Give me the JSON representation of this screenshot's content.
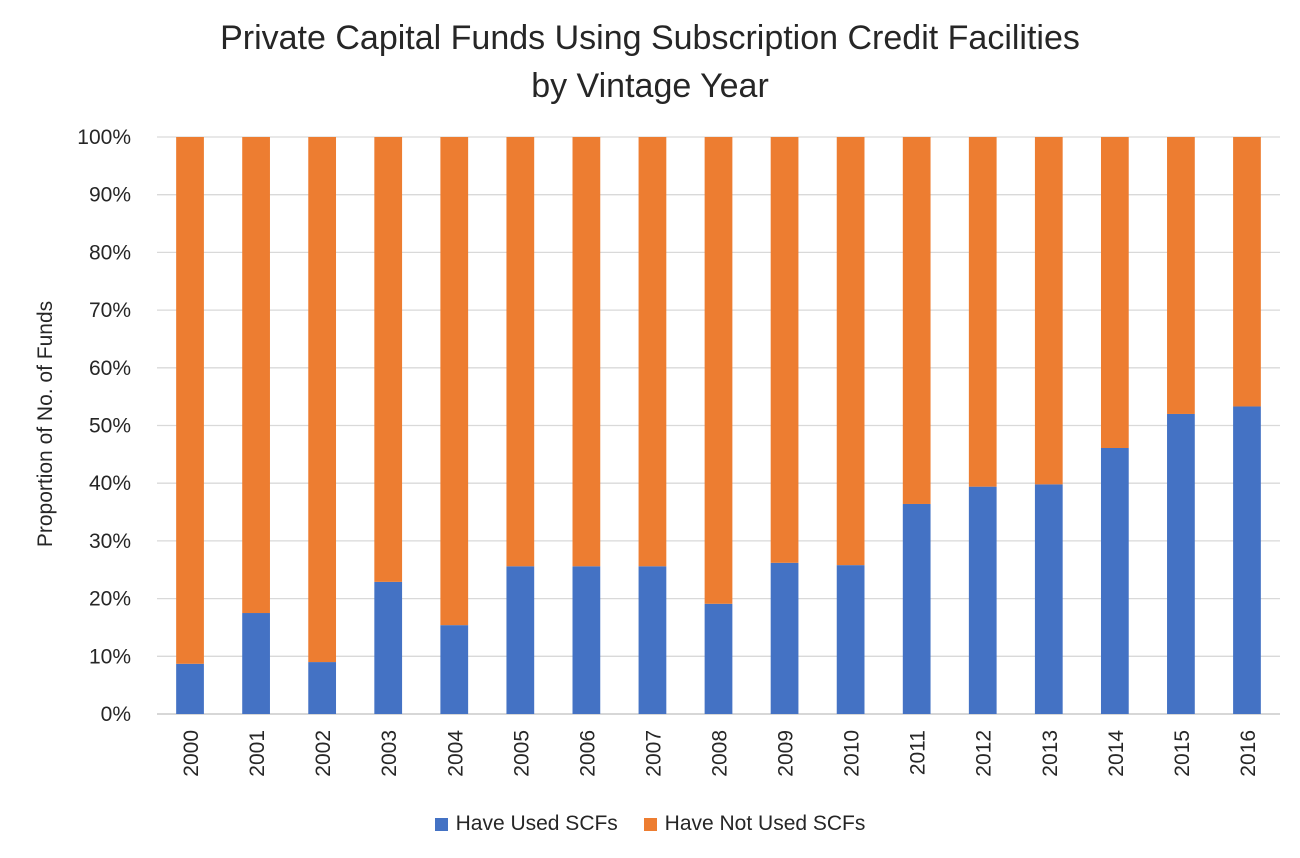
{
  "chart_data": {
    "type": "bar",
    "stacked": true,
    "percent_stacked": true,
    "title_lines": [
      "Private Capital Funds Using Subscription Credit Facilities",
      "by Vintage Year"
    ],
    "xlabel": "",
    "ylabel": "Proportion of No. of Funds",
    "ylim": [
      0,
      100
    ],
    "yticks": [
      "0%",
      "10%",
      "20%",
      "30%",
      "40%",
      "50%",
      "60%",
      "70%",
      "80%",
      "90%",
      "100%"
    ],
    "categories": [
      "2000",
      "2001",
      "2002",
      "2003",
      "2004",
      "2005",
      "2006",
      "2007",
      "2008",
      "2009",
      "2010",
      "2011",
      "2012",
      "2013",
      "2014",
      "2015",
      "2016"
    ],
    "series": [
      {
        "name": "Have Used SCFs",
        "color": "#4472C4",
        "values": [
          8.7,
          17.5,
          9.0,
          22.9,
          15.4,
          25.6,
          25.6,
          25.6,
          19.1,
          26.2,
          25.8,
          36.4,
          39.4,
          39.8,
          46.1,
          52.0,
          53.3
        ]
      },
      {
        "name": "Have Not Used SCFs",
        "color": "#ED7D31",
        "values": [
          91.3,
          82.5,
          91.0,
          77.1,
          84.6,
          74.4,
          74.4,
          74.4,
          80.9,
          73.8,
          74.2,
          63.6,
          60.6,
          60.2,
          53.9,
          48.0,
          46.7
        ]
      }
    ],
    "grid": true,
    "legend_position": "bottom"
  }
}
